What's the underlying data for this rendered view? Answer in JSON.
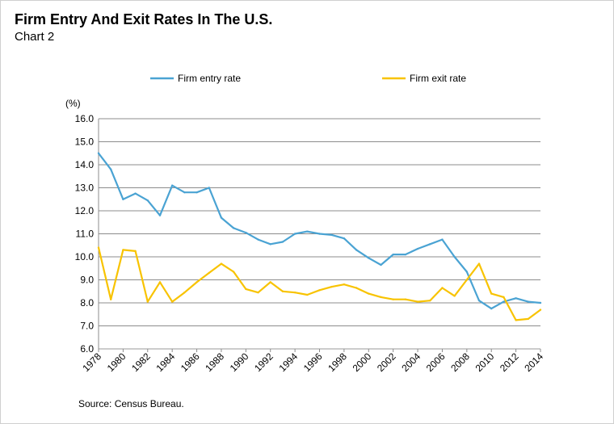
{
  "title": "Firm Entry And Exit Rates In The U.S.",
  "subtitle": "Chart 2",
  "source": "Source: Census Bureau.",
  "chart_data": {
    "type": "line",
    "ylabel": "(%)",
    "xlabel": "",
    "ylim": [
      6.0,
      16.0
    ],
    "yticks": [
      "6.0",
      "7.0",
      "8.0",
      "9.0",
      "10.0",
      "11.0",
      "12.0",
      "13.0",
      "14.0",
      "15.0",
      "16.0"
    ],
    "xlim": [
      1978,
      2014
    ],
    "xticks": [
      "1978",
      "1980",
      "1982",
      "1984",
      "1986",
      "1988",
      "1990",
      "1992",
      "1994",
      "1996",
      "1998",
      "2000",
      "2002",
      "2004",
      "2006",
      "2008",
      "2010",
      "2012",
      "2014"
    ],
    "grid": "horizontal",
    "legend": "top",
    "x": [
      1978,
      1979,
      1980,
      1981,
      1982,
      1983,
      1984,
      1985,
      1986,
      1987,
      1988,
      1989,
      1990,
      1991,
      1992,
      1993,
      1994,
      1995,
      1996,
      1997,
      1998,
      1999,
      2000,
      2001,
      2002,
      2003,
      2004,
      2005,
      2006,
      2007,
      2008,
      2009,
      2010,
      2011,
      2012,
      2013,
      2014
    ],
    "series": [
      {
        "name": "Firm entry rate",
        "color": "#4aa3d3",
        "values": [
          14.5,
          13.8,
          12.5,
          12.75,
          12.45,
          11.8,
          13.1,
          12.8,
          12.8,
          13.0,
          11.7,
          11.25,
          11.05,
          10.75,
          10.55,
          10.65,
          11.0,
          11.1,
          11.0,
          10.95,
          10.8,
          10.3,
          9.95,
          9.65,
          10.1,
          10.1,
          10.35,
          10.55,
          10.75,
          10.0,
          9.35,
          8.1,
          7.75,
          8.05,
          8.2,
          8.05,
          8.0
        ]
      },
      {
        "name": "Firm exit rate",
        "color": "#f8c300",
        "values": [
          10.4,
          8.15,
          10.3,
          10.25,
          8.05,
          8.9,
          8.05,
          8.45,
          8.9,
          9.3,
          9.7,
          9.35,
          8.6,
          8.45,
          8.9,
          8.5,
          8.45,
          8.35,
          8.55,
          8.7,
          8.8,
          8.65,
          8.4,
          8.25,
          8.15,
          8.15,
          8.05,
          8.1,
          8.65,
          8.3,
          9.0,
          9.7,
          8.4,
          8.25,
          7.25,
          7.3,
          7.7
        ]
      }
    ]
  }
}
